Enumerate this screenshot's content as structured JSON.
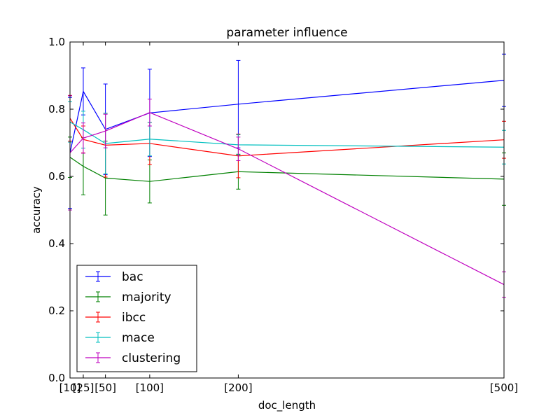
{
  "chart_data": {
    "type": "line",
    "title": "parameter influence",
    "xlabel": "doc_length",
    "ylabel": "accuracy",
    "x": [
      10,
      25,
      50,
      100,
      200,
      500
    ],
    "x_tick_labels": [
      "[10]",
      "[25]",
      "[50]",
      "[100]",
      "[200]",
      "[500]"
    ],
    "xlim": [
      10,
      500
    ],
    "ylim": [
      0.0,
      1.0
    ],
    "y_ticks": [
      "0.0",
      "0.2",
      "0.4",
      "0.6",
      "0.8",
      "1.0"
    ],
    "grid": false,
    "legend_position": "lower-left",
    "series": [
      {
        "name": "bac",
        "color": "#0000ff",
        "values": [
          0.67,
          0.853,
          0.74,
          0.789,
          0.815,
          0.886
        ],
        "errors": [
          0.165,
          0.07,
          0.135,
          0.13,
          0.13,
          0.078
        ]
      },
      {
        "name": "majority",
        "color": "#008000",
        "values": [
          0.657,
          0.63,
          0.595,
          0.585,
          0.614,
          0.592
        ],
        "errors": [
          0.06,
          0.085,
          0.11,
          0.064,
          0.052,
          0.078
        ]
      },
      {
        "name": "ibcc",
        "color": "#ff0000",
        "values": [
          0.773,
          0.71,
          0.693,
          0.698,
          0.661,
          0.709
        ],
        "errors": [
          0.068,
          0.04,
          0.095,
          0.063,
          0.065,
          0.055
        ]
      },
      {
        "name": "mace",
        "color": "#00bfbf",
        "values": [
          0.762,
          0.739,
          0.698,
          0.711,
          0.694,
          0.687
        ],
        "errors": [
          0.06,
          0.055,
          0.09,
          0.05,
          0.03,
          0.05
        ]
      },
      {
        "name": "clustering",
        "color": "#bf00bf",
        "values": [
          0.67,
          0.714,
          0.735,
          0.79,
          0.682,
          0.278
        ],
        "errors": [
          0.17,
          0.045,
          0.05,
          0.04,
          0.035,
          0.038
        ]
      }
    ]
  }
}
